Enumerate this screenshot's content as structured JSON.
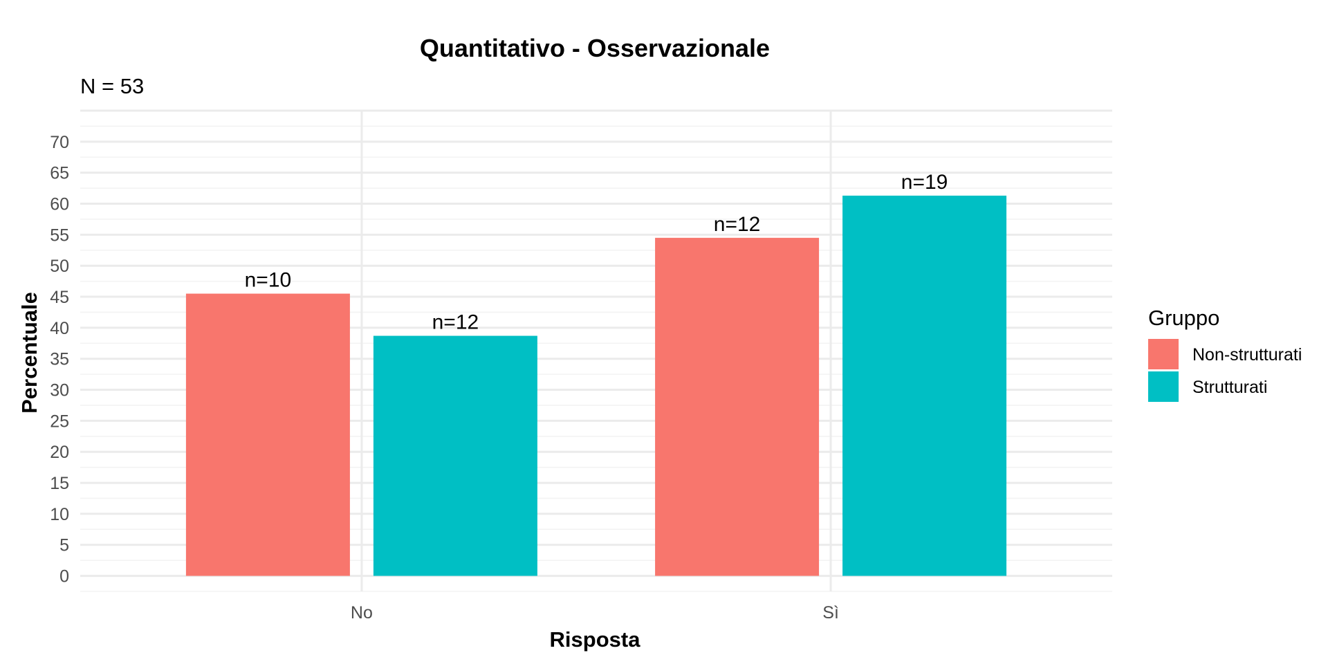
{
  "chart_data": {
    "type": "bar",
    "title": "Quantitativo - Osservazionale",
    "subtitle": "N = 53",
    "xlabel": "Risposta",
    "ylabel": "Percentuale",
    "categories": [
      "No",
      "Sì"
    ],
    "series": [
      {
        "name": "Non-strutturati",
        "color": "#F8766D",
        "values": [
          45.5,
          54.5
        ],
        "labels": [
          "n=10",
          "n=12"
        ]
      },
      {
        "name": "Strutturati",
        "color": "#00BFC4",
        "values": [
          38.7,
          61.3
        ],
        "labels": [
          "n=12",
          "n=19"
        ]
      }
    ],
    "ylim": [
      -2.5,
      75
    ],
    "yticks": [
      0,
      5,
      10,
      15,
      20,
      25,
      30,
      35,
      40,
      45,
      50,
      55,
      60,
      65,
      70
    ],
    "grid": true,
    "legend": {
      "title": "Gruppo",
      "position": "right"
    }
  }
}
